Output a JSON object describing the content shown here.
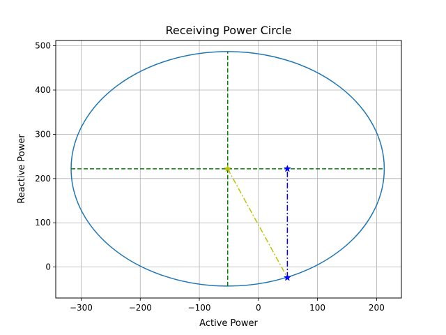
{
  "chart_data": {
    "type": "line",
    "title": "Receiving Power Circle",
    "xlabel": "Active Power",
    "ylabel": "Reactive Power",
    "xlim": [
      -343,
      242
    ],
    "ylim": [
      -70,
      512
    ],
    "xticks": [
      -300,
      -200,
      -100,
      0,
      100,
      200
    ],
    "xtick_labels": [
      "−300",
      "−200",
      "−100",
      "0",
      "100",
      "200"
    ],
    "yticks": [
      0,
      100,
      200,
      300,
      400,
      500
    ],
    "ytick_labels": [
      "0",
      "100",
      "200",
      "300",
      "400",
      "500"
    ],
    "grid": true,
    "colors": {
      "circle": "#1f77b4",
      "center_lines": "#008000",
      "center_point": "#bfbf00",
      "operating_point": "#0000ff"
    },
    "circle": {
      "center": [
        -52,
        222
      ],
      "radius_x": 265,
      "radius_y": 265
    },
    "series": [
      {
        "kind": "horizontal-line",
        "style": "dashed",
        "x": [
          -317,
          213
        ],
        "y": [
          222,
          222
        ]
      },
      {
        "kind": "vertical-line",
        "style": "dashed",
        "x": [
          -52,
          -52
        ],
        "y": [
          -43,
          487
        ]
      },
      {
        "kind": "radius-line",
        "style": "dashdot",
        "x": [
          -52,
          49
        ],
        "y": [
          222,
          -24
        ]
      },
      {
        "kind": "vertical-projection",
        "style": "dashdot",
        "x": [
          49,
          49
        ],
        "y": [
          -24,
          222
        ]
      }
    ],
    "points": [
      {
        "kind": "center",
        "marker": "star",
        "x": -52,
        "y": 222
      },
      {
        "kind": "operating",
        "marker": "star",
        "x": 49,
        "y": -24
      },
      {
        "kind": "projection",
        "marker": "star",
        "x": 49,
        "y": 222
      }
    ]
  }
}
